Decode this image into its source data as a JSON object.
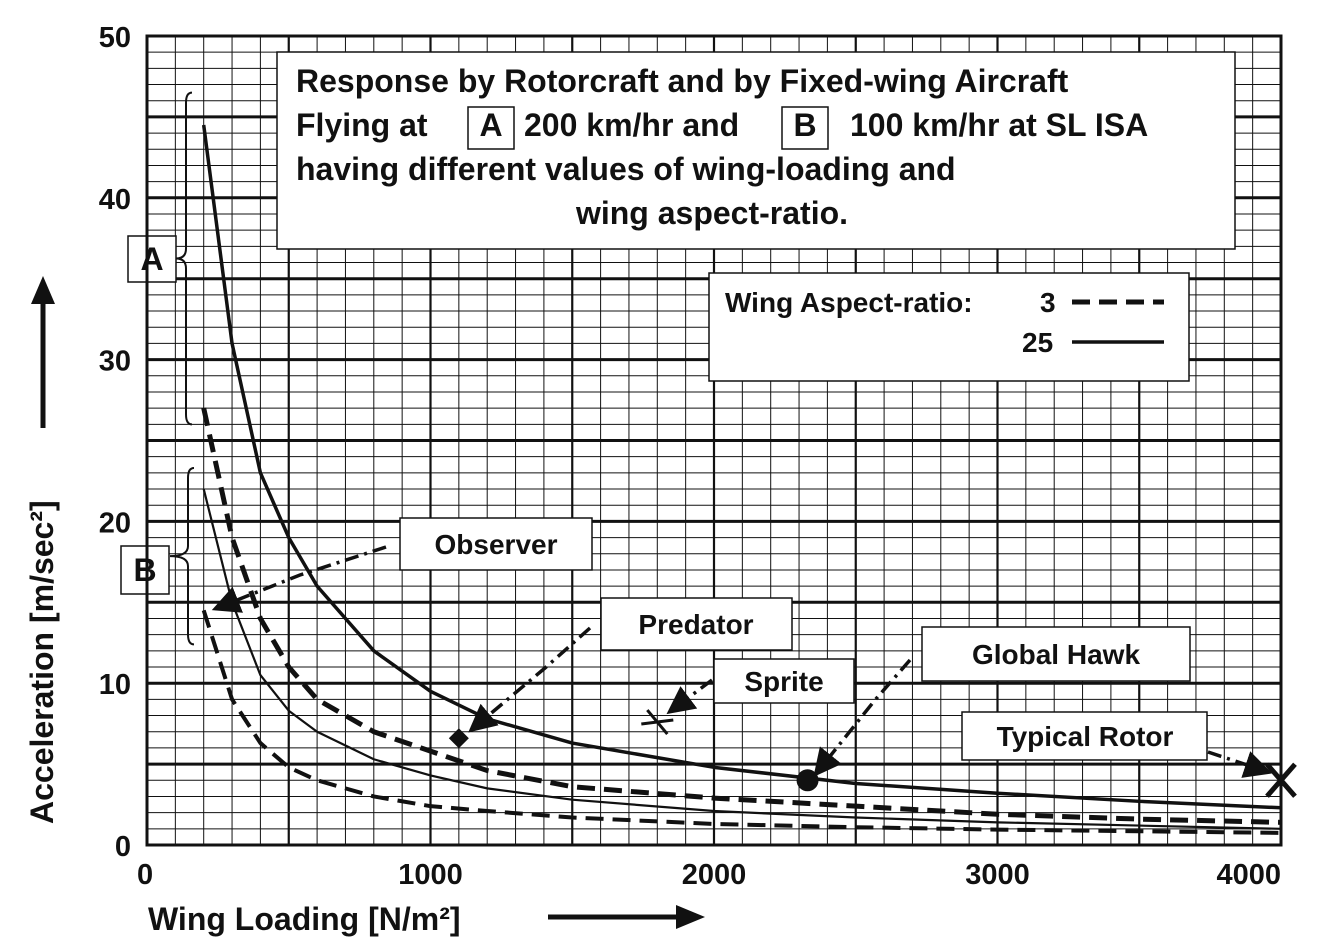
{
  "chart_data": {
    "type": "line",
    "title_lines": [
      "Response by Rotorcraft and by Fixed-wing Aircraft",
      "having different values of wing-loading and",
      "wing aspect-ratio."
    ],
    "title_line2": {
      "pre": "Flying at",
      "box_a": "A",
      "mid": "200 km/hr and",
      "box_b": "B",
      "post": "100 km/hr at SL ISA"
    },
    "xlabel": "Wing Loading [N/m²]",
    "ylabel": "Acceleration [m/sec²]",
    "xlim": [
      0,
      4000
    ],
    "ylim": [
      0,
      50
    ],
    "xticks": [
      "0",
      "1000",
      "2000",
      "3000",
      "4000"
    ],
    "yticks": [
      "0",
      "10",
      "20",
      "30",
      "40",
      "50"
    ],
    "grid": true,
    "legend": {
      "title": "Wing Aspect-ratio:",
      "entries": [
        {
          "label": "3",
          "style": "dashed"
        },
        {
          "label": "25",
          "style": "solid"
        }
      ]
    },
    "groups": [
      "A",
      "B"
    ],
    "series": [
      {
        "group": "A",
        "aspect_ratio": 25,
        "style": "solid",
        "x": [
          200,
          300,
          400,
          500,
          600,
          800,
          1000,
          1200,
          1500,
          2000,
          2500,
          3000,
          3500,
          4000
        ],
        "y": [
          44.5,
          31,
          23,
          19,
          16,
          12,
          9.5,
          7.8,
          6.3,
          4.8,
          3.8,
          3.2,
          2.7,
          2.3
        ]
      },
      {
        "group": "A",
        "aspect_ratio": 3,
        "style": "dashed",
        "x": [
          200,
          300,
          400,
          500,
          600,
          800,
          1000,
          1200,
          1500,
          2000,
          2500,
          3000,
          3500,
          4000
        ],
        "y": [
          27,
          19,
          14,
          11,
          9,
          7,
          5.8,
          4.6,
          3.6,
          2.9,
          2.4,
          1.9,
          1.6,
          1.4
        ]
      },
      {
        "group": "B",
        "aspect_ratio": 25,
        "style": "solid",
        "x": [
          200,
          300,
          400,
          500,
          600,
          800,
          1000,
          1200,
          1500,
          2000,
          2500,
          3000,
          3500,
          4000
        ],
        "y": [
          22,
          15,
          10.5,
          8.3,
          7,
          5.3,
          4.3,
          3.5,
          2.8,
          2.1,
          1.7,
          1.4,
          1.2,
          1.0
        ]
      },
      {
        "group": "B",
        "aspect_ratio": 3,
        "style": "dashed",
        "x": [
          200,
          300,
          400,
          500,
          600,
          800,
          1000,
          1200,
          1500,
          2000,
          2500,
          3000,
          3500,
          4000
        ],
        "y": [
          14.5,
          9,
          6.3,
          4.8,
          4,
          3,
          2.4,
          2.1,
          1.7,
          1.3,
          1.1,
          0.95,
          0.85,
          0.75
        ]
      }
    ],
    "points": [
      {
        "label": "Observer",
        "x": 240,
        "y": 14.6,
        "marker": "arrow"
      },
      {
        "label": "Predator",
        "x": 1100,
        "y": 6.6,
        "marker": "diamond"
      },
      {
        "label": "Sprite",
        "x": 1800,
        "y": 7.6,
        "marker": "star"
      },
      {
        "label": "Global Hawk",
        "x": 2330,
        "y": 4.0,
        "marker": "circle"
      },
      {
        "label": "Typical Rotor",
        "x": 4000,
        "y": 4.0,
        "marker": "x"
      }
    ]
  }
}
